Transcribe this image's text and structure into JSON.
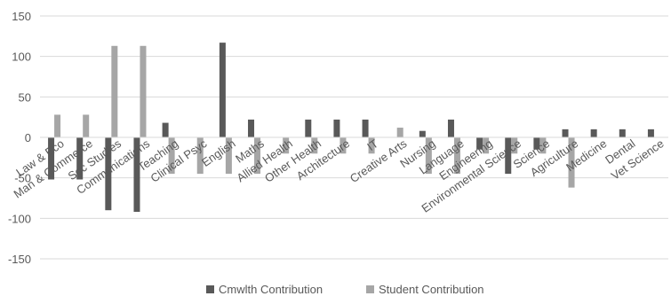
{
  "chart_data": {
    "type": "bar",
    "title": "",
    "xlabel": "",
    "ylabel": "",
    "ylim": [
      -150,
      150
    ],
    "yticks": [
      -150,
      -100,
      -50,
      0,
      50,
      100,
      150
    ],
    "ytick_labels": [
      "-150",
      "-100",
      "-50",
      "0",
      "50",
      "100",
      "150"
    ],
    "grid": "horizontal",
    "legend_position": "bottom",
    "categories": [
      "Law & Eco",
      "Man & Commerce",
      "Soc Studies",
      "Communications",
      "Teaching",
      "Clinical Psyc",
      "English",
      "Maths",
      "Allied Health",
      "Other Health",
      "Architecture",
      "IT",
      "Creative Arts",
      "Nursing",
      "Language",
      "Engineering",
      "Environmental Science",
      "Science",
      "Agriculture",
      "Medicine",
      "Dental",
      "Vet Science"
    ],
    "series": [
      {
        "name": "Cmwlth Contribution",
        "color": "#595959",
        "values": [
          -52,
          -52,
          -90,
          -92,
          18,
          0,
          117,
          22,
          0,
          22,
          22,
          22,
          0,
          8,
          22,
          -15,
          -45,
          -15,
          10,
          10,
          10,
          10
        ]
      },
      {
        "name": "Student Contribution",
        "color": "#a6a6a6",
        "values": [
          28,
          28,
          113,
          113,
          -45,
          -45,
          -45,
          -45,
          -20,
          -20,
          -20,
          -20,
          12,
          -45,
          -45,
          -20,
          -20,
          -20,
          -62,
          0,
          0,
          0
        ]
      }
    ]
  }
}
